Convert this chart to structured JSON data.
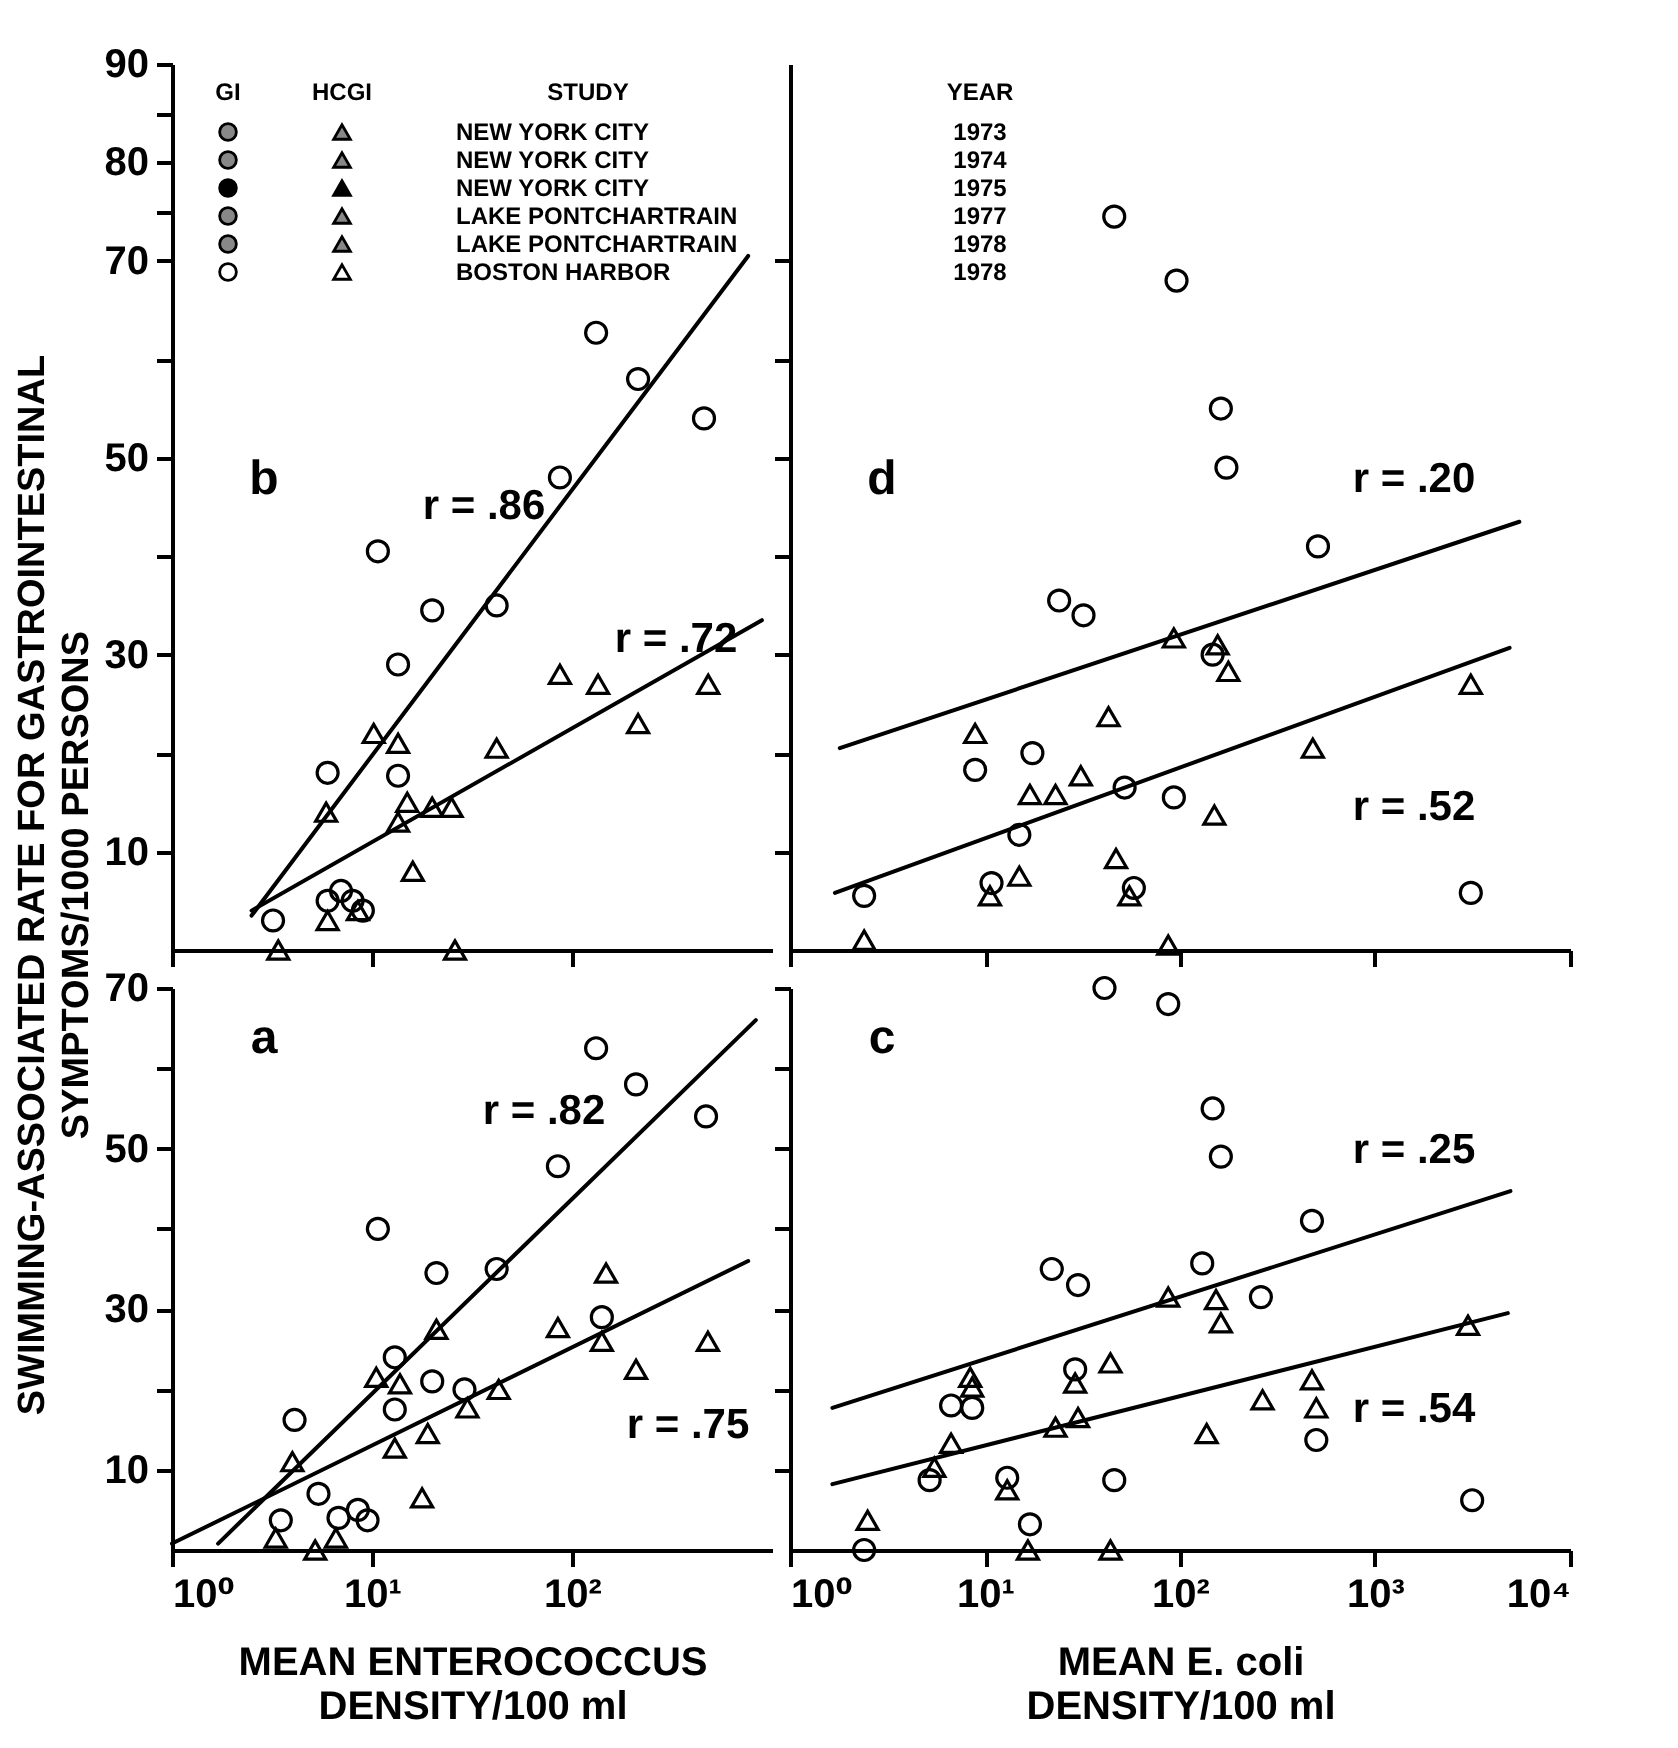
{
  "chart_data": [
    {
      "type": "scatter",
      "ylabel": "SWIMMING-ASSOCIATED RATE FOR GASTROINTESTINAL\nSYMPTOMS/1000 PERSONS",
      "log": "x",
      "tick_labels": "y",
      "xlim": [
        1,
        1000
      ],
      "xticks": [
        {
          "value": 1,
          "label": null
        },
        {
          "value": 10,
          "label": null
        },
        {
          "value": 100,
          "label": null
        }
      ],
      "ylim": [
        0,
        90
      ],
      "yticks": [
        10,
        {
          "value": 20,
          "label": null
        },
        30,
        {
          "value": 40,
          "label": null
        },
        50,
        {
          "value": 60,
          "label": null
        },
        70,
        {
          "value": 75,
          "label": null
        },
        80,
        {
          "value": 85,
          "label": null
        },
        90
      ],
      "series": [
        {
          "type": "scatter",
          "marker": "circle",
          "color": "#000000",
          "x": [
            132,
            214,
            457,
            87,
            10.7,
            20,
            42,
            13.5,
            6,
            13.5,
            6,
            7,
            8,
            9,
            3.2
          ],
          "values": [
            62.7,
            58,
            54,
            48,
            40.5,
            34.5,
            35,
            29,
            18,
            17.7,
            5,
            6,
            5,
            4,
            3
          ]
        },
        {
          "type": "scatter",
          "marker": "triangle",
          "color": "#000000",
          "x": [
            87,
            135,
            480,
            214,
            42,
            10.2,
            13.5,
            5.9,
            15,
            20,
            25,
            13.5,
            16,
            3.4,
            26,
            8.5,
            6
          ],
          "values": [
            28,
            27,
            27,
            23,
            20.5,
            22,
            21,
            14,
            15,
            14.5,
            14.5,
            13,
            8,
            0,
            0,
            4,
            3
          ]
        },
        {
          "type": "line",
          "color": "#000000",
          "x": [
            2.5,
            760
          ],
          "values": [
            3.5,
            70.5
          ]
        },
        {
          "type": "line",
          "color": "#000000",
          "x": [
            2.5,
            890
          ],
          "values": [
            4,
            33.5
          ]
        }
      ],
      "annotations": [
        "b",
        "r = .86",
        "r = .72",
        "GI",
        "HCGI",
        "STUDY",
        "YEAR",
        "NEW YORK CITY",
        "1973",
        "NEW YORK CITY",
        "1974",
        "NEW YORK CITY",
        "1975",
        "LAKE PONTCHARTRAIN",
        "1977",
        "LAKE PONTCHARTRAIN",
        "1978",
        "BOSTON HARBOR",
        "1978"
      ]
    },
    {
      "type": "scatter",
      "log": "x",
      "tick_labels": false,
      "xlim": [
        1,
        10000
      ],
      "xticks": [
        {
          "value": 1,
          "label": null
        },
        {
          "value": 10,
          "label": null
        },
        {
          "value": 100,
          "label": null
        },
        {
          "value": 1000,
          "label": null
        },
        {
          "value": 10000,
          "label": null
        }
      ],
      "ylim": [
        0,
        90
      ],
      "yticks": [
        {
          "value": 10,
          "label": null
        },
        {
          "value": 20,
          "label": null
        },
        {
          "value": 30,
          "label": null
        },
        {
          "value": 40,
          "label": null
        },
        {
          "value": 50,
          "label": null
        },
        {
          "value": 60,
          "label": null
        },
        {
          "value": 70,
          "label": null
        }
      ],
      "series": [
        {
          "type": "scatter",
          "marker": "circle",
          "color": "#000000",
          "x": [
            46,
            96,
            162,
            173,
            510,
            24,
            32,
            147,
            17.5,
            8.9,
            52,
            93,
            15,
            10.8,
            58,
            3100,
            2.4
          ],
          "values": [
            74.5,
            68,
            55,
            49,
            41,
            35.5,
            34,
            30,
            20,
            18.3,
            16.5,
            15.5,
            11.7,
            6.8,
            6.3,
            5.8,
            5.5
          ]
        },
        {
          "type": "scatter",
          "marker": "triangle",
          "color": "#000000",
          "x": [
            93,
            156,
            177,
            3100,
            43,
            8.9,
            480,
            17,
            23,
            31,
            150,
            47,
            15,
            2.4,
            55,
            87,
            10.6
          ],
          "values": [
            31.7,
            31,
            28.3,
            27,
            23.7,
            22,
            20.5,
            15.8,
            15.8,
            17.7,
            13.7,
            9.3,
            7.5,
            1,
            5.5,
            0.5,
            5.5
          ]
        },
        {
          "type": "line",
          "color": "#000000",
          "x": [
            1.8,
            5500
          ],
          "values": [
            20.5,
            43.5
          ]
        },
        {
          "type": "line",
          "color": "#000000",
          "x": [
            1.7,
            4900
          ],
          "values": [
            5.8,
            30.7
          ]
        }
      ],
      "annotations": [
        "d",
        "r = .20",
        "r = .52"
      ]
    },
    {
      "type": "scatter",
      "xlabel": "MEAN ENTEROCOCCUS\nDENSITY/100 ml",
      "log": "x",
      "xlim": [
        1,
        1000
      ],
      "xticks": [
        {
          "value": 1,
          "label": "10⁰"
        },
        {
          "value": 10,
          "label": "10¹"
        },
        {
          "value": 100,
          "label": "10²"
        }
      ],
      "ylim": [
        0,
        70
      ],
      "yticks": [
        10,
        {
          "value": 20,
          "label": null
        },
        30,
        {
          "value": 40,
          "label": null
        },
        50,
        {
          "value": 60,
          "label": null
        },
        70
      ],
      "series": [
        {
          "type": "scatter",
          "marker": "circle",
          "color": "#000000",
          "x": [
            132,
            209,
            468,
            85,
            10.7,
            21,
            42,
            141,
            13,
            20,
            13,
            29,
            4.1,
            5.4,
            3.5,
            6.8,
            8.5,
            9.5
          ],
          "values": [
            62.5,
            58,
            54,
            47.8,
            40,
            34.5,
            35,
            29,
            24,
            21,
            17.5,
            20,
            16.2,
            7,
            3.7,
            4,
            5,
            3.7
          ]
        },
        {
          "type": "scatter",
          "marker": "triangle",
          "color": "#000000",
          "x": [
            148,
            85,
            141,
            478,
            209,
            43,
            21,
            10.5,
            13.8,
            30,
            19,
            13,
            17.8,
            4,
            3.3,
            5.2,
            6.6
          ],
          "values": [
            34.5,
            27.7,
            26,
            26,
            22.5,
            20,
            27.5,
            21.5,
            20.7,
            17.7,
            14.5,
            12.7,
            6.5,
            11,
            1.5,
            0,
            1.5
          ]
        },
        {
          "type": "line",
          "color": "#000000",
          "x": [
            1.7,
            830
          ],
          "values": [
            0.8,
            66
          ]
        },
        {
          "type": "line",
          "color": "#000000",
          "x": [
            1,
            760
          ],
          "values": [
            0.8,
            36
          ]
        }
      ],
      "annotations": [
        "a",
        "r = .82",
        "r = .75"
      ]
    },
    {
      "type": "scatter",
      "xlabel": "MEAN E. coli\nDENSITY/100 ml",
      "log": "x",
      "tick_labels": "x",
      "xlim": [
        1,
        10000
      ],
      "xticks": [
        {
          "value": 1,
          "label": "10⁰"
        },
        {
          "value": 10,
          "label": "10¹"
        },
        {
          "value": 100,
          "label": "10²"
        },
        {
          "value": 1000,
          "label": "10³"
        },
        {
          "value": 10000,
          "label": "10⁴"
        }
      ],
      "ylim": [
        0,
        70
      ],
      "yticks": [
        10,
        20,
        30,
        40,
        50,
        60,
        70
      ],
      "series": [
        {
          "type": "scatter",
          "marker": "circle",
          "color": "#000000",
          "x": [
            41,
            87,
            147,
            162,
            475,
            22,
            30,
            130,
            260,
            29,
            6.7,
            8.6,
            5.2,
            13,
            46,
            500,
            3150,
            2.4,
            17
          ],
          "values": [
            70,
            68,
            55,
            49,
            41,
            35,
            33,
            35.7,
            31.5,
            22.5,
            18,
            17.7,
            8.7,
            9,
            8.7,
            13.7,
            6.2,
            0,
            3.2
          ]
        },
        {
          "type": "scatter",
          "marker": "triangle",
          "color": "#000000",
          "x": [
            87,
            153,
            162,
            3000,
            44,
            8.4,
            8.6,
            29,
            23,
            30,
            6.7,
            5.5,
            13,
            265,
            475,
            500,
            137,
            2.5,
            16.6,
            44
          ],
          "values": [
            31.5,
            31.2,
            28.3,
            28,
            23.3,
            21.5,
            20.3,
            20.8,
            15.3,
            16.5,
            13.3,
            10.3,
            7.5,
            18.7,
            21.2,
            17.7,
            14.5,
            3.7,
            0,
            0
          ]
        },
        {
          "type": "line",
          "color": "#000000",
          "x": [
            1.65,
            4950
          ],
          "values": [
            17.7,
            44.7
          ]
        },
        {
          "type": "line",
          "color": "#000000",
          "x": [
            1.65,
            4800
          ],
          "values": [
            8.2,
            29.5
          ]
        }
      ],
      "annotations": [
        "c",
        "r = .25",
        "r = .54"
      ]
    }
  ]
}
